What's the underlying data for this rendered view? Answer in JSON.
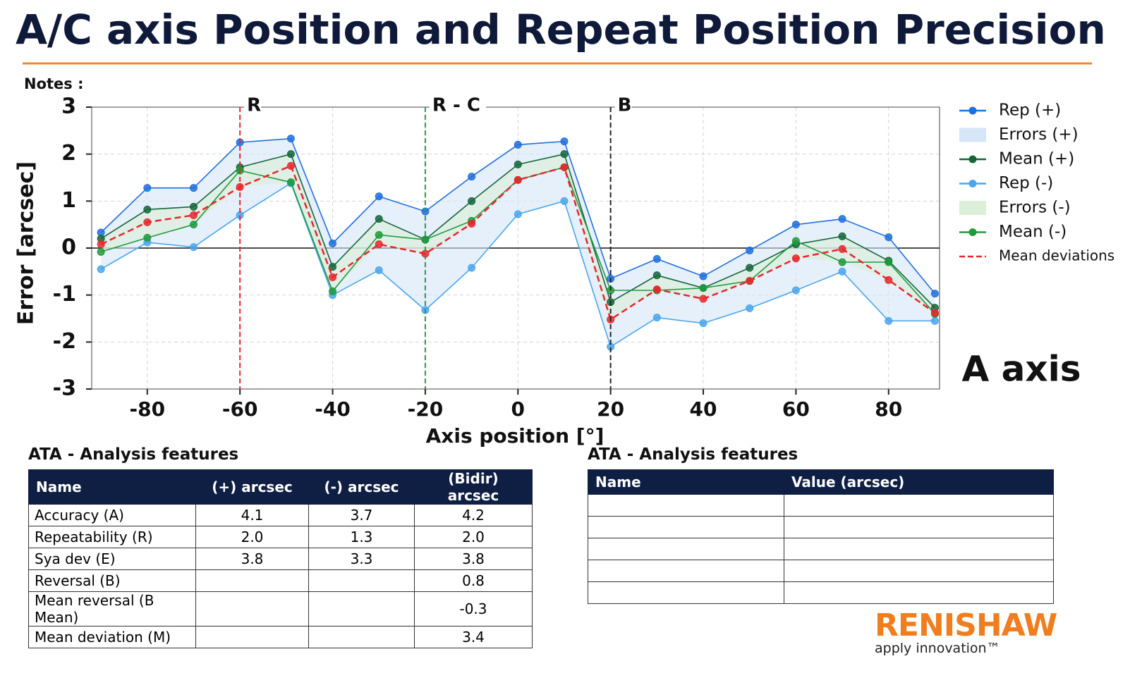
{
  "chart_data": {
    "type": "line",
    "title": "A/C axis Position and Repeat Position Precision",
    "notes": "Notes :",
    "panel_label": "A axis",
    "x_label": "Axis position [°]",
    "y_label": "Error [arcsec]",
    "x": [
      -90,
      -80,
      -70,
      -60,
      -49,
      -40,
      -30,
      -20,
      -10,
      0,
      10,
      20,
      30,
      40,
      50,
      60,
      70,
      80,
      90
    ],
    "xlim": [
      -92,
      91
    ],
    "ylim": [
      -3,
      3
    ],
    "xticks": [
      -80,
      -60,
      -40,
      -20,
      0,
      20,
      40,
      60,
      80
    ],
    "yticks": [
      -3,
      -2,
      -1,
      0,
      1,
      2,
      3
    ],
    "grid": true,
    "legend": "right",
    "annotations": [
      {
        "label": "R",
        "x": -60,
        "color": "#e8262a"
      },
      {
        "label": "R - C",
        "x": -20,
        "color": "#2a9a48"
      },
      {
        "label": "B",
        "x": 20,
        "color": "#222222"
      }
    ],
    "series": [
      {
        "name": "Rep (+)",
        "color": "#1f6fde",
        "values": [
          0.33,
          1.28,
          1.28,
          2.25,
          2.33,
          0.1,
          1.1,
          0.78,
          1.52,
          2.2,
          2.27,
          -0.65,
          -0.23,
          -0.6,
          -0.05,
          0.5,
          0.62,
          0.23,
          -0.97
        ]
      },
      {
        "name": "Errors (+)",
        "kind": "band",
        "color": "#d6e6f8",
        "upper": [
          0.33,
          1.28,
          1.28,
          2.25,
          2.33,
          0.1,
          1.1,
          0.78,
          1.52,
          2.2,
          2.27,
          -0.65,
          -0.23,
          -0.6,
          -0.05,
          0.5,
          0.62,
          0.23,
          -0.97
        ],
        "lower": [
          -0.45,
          0.12,
          0.02,
          0.7,
          1.38,
          -1.0,
          -0.47,
          -1.32,
          -0.42,
          0.72,
          1.0,
          -2.1,
          -1.48,
          -1.6,
          -1.28,
          -0.9,
          -0.5,
          -1.55,
          -1.55
        ]
      },
      {
        "name": "Mean (+)",
        "color": "#14663a",
        "values": [
          0.2,
          0.82,
          0.88,
          1.72,
          2.0,
          -0.4,
          0.62,
          0.18,
          1.0,
          1.78,
          2.0,
          -1.15,
          -0.58,
          -0.85,
          -0.42,
          0.08,
          0.25,
          -0.27,
          -1.27
        ]
      },
      {
        "name": "Rep (-)",
        "color": "#4aa6ee",
        "values": [
          -0.45,
          0.12,
          0.02,
          0.7,
          1.38,
          -1.0,
          -0.47,
          -1.32,
          -0.42,
          0.72,
          1.0,
          -2.1,
          -1.48,
          -1.6,
          -1.28,
          -0.9,
          -0.5,
          -1.55,
          -1.55
        ]
      },
      {
        "name": "Errors (-)",
        "kind": "band",
        "color": "#dcefd8",
        "upper": [
          0.2,
          0.82,
          0.88,
          1.72,
          2.0,
          -0.4,
          0.62,
          0.18,
          1.0,
          1.78,
          2.0,
          -1.15,
          -0.58,
          -0.85,
          -0.42,
          0.08,
          0.25,
          -0.27,
          -1.27
        ],
        "lower": [
          -0.08,
          0.22,
          0.5,
          1.3,
          1.4,
          -0.92,
          0.08,
          -0.12,
          0.52,
          1.45,
          1.72,
          -1.52,
          -0.9,
          -1.08,
          -0.7,
          -0.22,
          -0.3,
          -0.68,
          -1.4
        ]
      },
      {
        "name": "Mean (-)",
        "color": "#1f9a3c",
        "values": [
          -0.08,
          0.22,
          0.5,
          1.65,
          1.4,
          -0.92,
          0.28,
          0.18,
          0.58,
          1.45,
          1.72,
          -0.9,
          -0.9,
          -0.85,
          -0.7,
          0.15,
          -0.3,
          -0.3,
          -1.4
        ]
      },
      {
        "name": "Mean deviations",
        "color": "#e8262a",
        "style": "dashed",
        "values": [
          0.08,
          0.55,
          0.7,
          1.3,
          1.75,
          -0.62,
          0.08,
          -0.12,
          0.52,
          1.45,
          1.72,
          -1.52,
          -0.88,
          -1.08,
          -0.7,
          -0.22,
          -0.02,
          -0.68,
          -1.38
        ]
      }
    ]
  },
  "tables": [
    {
      "title": "ATA - Analysis features",
      "header": [
        "Name",
        "(+) arcsec",
        "(-) arcsec",
        "(Bidir) arcsec"
      ],
      "rows": [
        [
          "Accuracy (A)",
          "4.1",
          "3.7",
          "4.2"
        ],
        [
          "Repeatability (R)",
          "2.0",
          "1.3",
          "2.0"
        ],
        [
          "Sya dev (E)",
          "3.8",
          "3.3",
          "3.8"
        ],
        [
          "Reversal (B)",
          null,
          null,
          "0.8"
        ],
        [
          "Mean reversal (B Mean)",
          null,
          null,
          "-0.3"
        ],
        [
          "Mean deviation (M)",
          null,
          null,
          "3.4"
        ]
      ]
    },
    {
      "title": "ATA - Analysis features",
      "header": [
        "Name",
        "Value (arcsec)"
      ],
      "rows": [
        [
          null,
          null
        ],
        [
          null,
          null
        ],
        [
          null,
          null
        ],
        [
          null,
          null
        ],
        [
          null,
          null
        ]
      ]
    }
  ],
  "logo": {
    "name": "RENISHAW",
    "tagline": "apply innovation™"
  }
}
